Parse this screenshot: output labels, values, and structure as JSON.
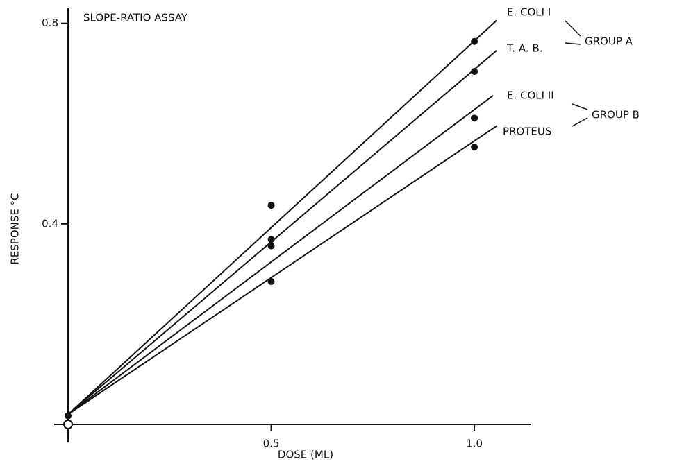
{
  "chart_data": {
    "type": "scatter",
    "title": "SLOPE-RATIO ASSAY",
    "xlabel": "DOSE (ML)",
    "ylabel": "RESPONSE °C",
    "xlim": [
      0,
      1.14
    ],
    "ylim": [
      0,
      0.83
    ],
    "xticks": [
      0.5,
      {
        "value": 1,
        "label": "1.0"
      }
    ],
    "yticks": [
      0.4,
      0.8
    ],
    "color": "#111111",
    "origin_points": {
      "x": [
        0,
        0
      ],
      "values": [
        0.017,
        0
      ]
    },
    "series": [
      {
        "name": "E. COLI I",
        "x": [
          0.5,
          1.0
        ],
        "values": [
          0.437,
          0.764
        ],
        "line": {
          "x": [
            0,
            1.055
          ],
          "values": [
            0.02,
            0.806
          ]
        }
      },
      {
        "name": "T. A. B.",
        "x": [
          0.5,
          1.0
        ],
        "values": [
          0.369,
          0.704
        ],
        "line": {
          "x": [
            0,
            1.055
          ],
          "values": [
            0.02,
            0.746
          ]
        }
      },
      {
        "name": "E. COLI II",
        "x": [
          0.5,
          1.0
        ],
        "values": [
          0.356,
          0.611
        ],
        "line": {
          "x": [
            0,
            1.046
          ],
          "values": [
            0.02,
            0.656
          ]
        }
      },
      {
        "name": "PROTEUS",
        "x": [
          0.5,
          1.0
        ],
        "values": [
          0.285,
          0.553
        ],
        "line": {
          "x": [
            0,
            1.056
          ],
          "values": [
            0.02,
            0.596
          ]
        }
      }
    ],
    "groups": [
      "GROUP A",
      "GROUP B"
    ]
  }
}
